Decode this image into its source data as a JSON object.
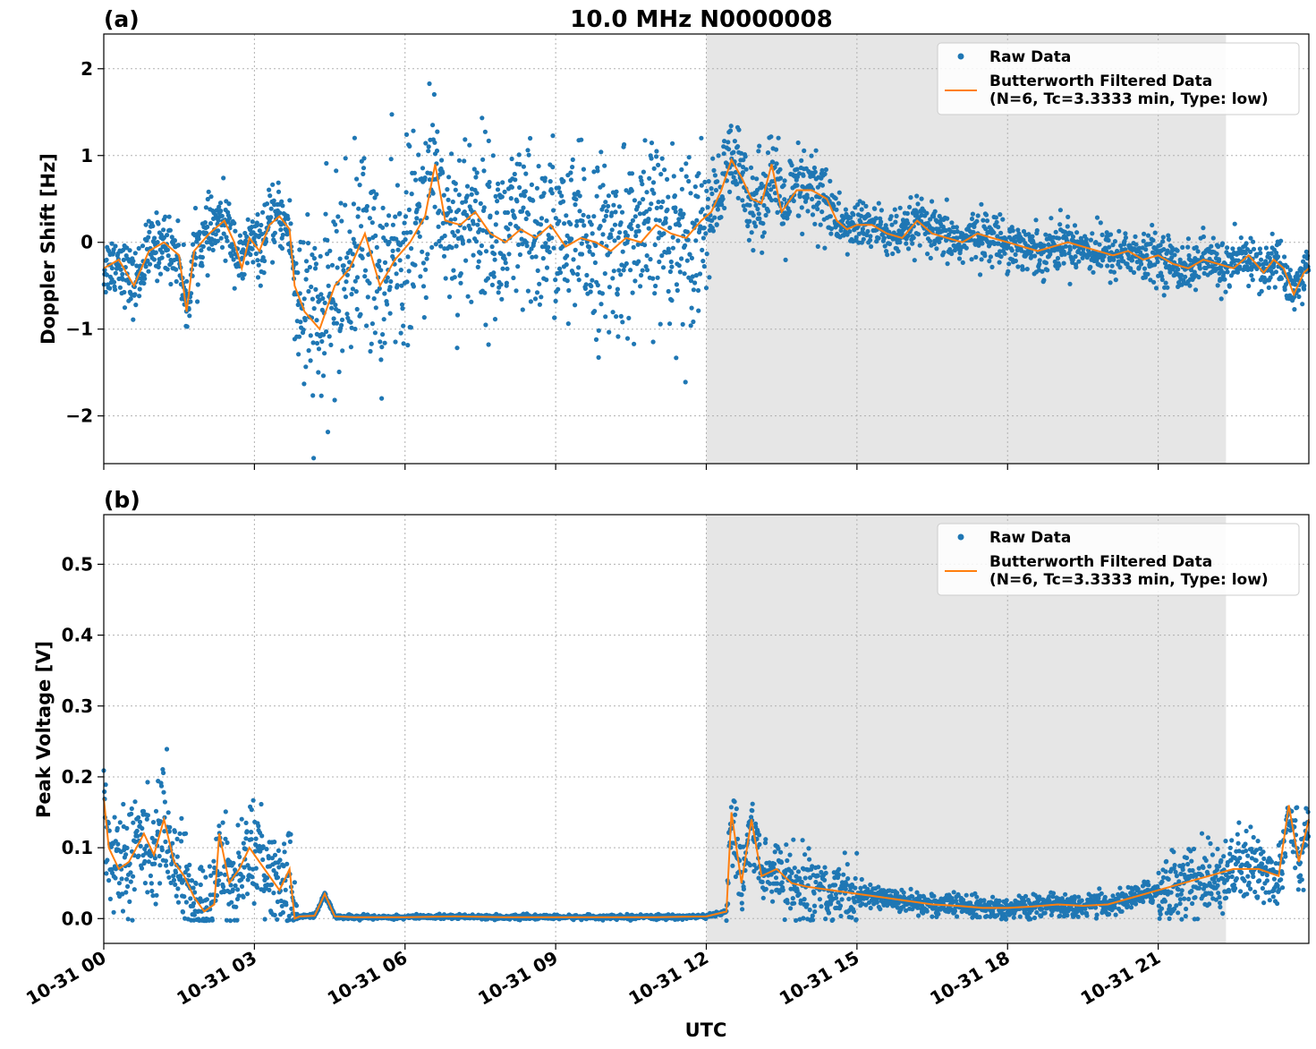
{
  "title": "10.0 MHz N0000008",
  "xlabel": "UTC",
  "x_tick_labels": [
    "10-31 00",
    "10-31 03",
    "10-31 06",
    "10-31 09",
    "10-31 12",
    "10-31 15",
    "10-31 18",
    "10-31 21"
  ],
  "colors": {
    "raw": "#1f77b4",
    "filtered": "#ff7f0e",
    "shade": "#e6e6e6"
  },
  "chart_data": [
    {
      "type": "scatter",
      "panel_label": "(a)",
      "ylabel": "Doppler Shift [Hz]",
      "xlim_hours": [
        0,
        24
      ],
      "ylim": [
        -2.55,
        2.4
      ],
      "yticks": [
        2,
        1,
        0,
        -1,
        -2
      ],
      "ytick_labels": [
        "2",
        "1",
        "0",
        "−1",
        "−2"
      ],
      "grid": true,
      "legend_position": "top-right",
      "shaded_x_range_hours": [
        12.0,
        22.35
      ],
      "legend": {
        "raw": "Raw Data",
        "filtered_line1": "Butterworth Filtered Data",
        "filtered_line2": "(N=6, Tc=3.3333 min, Type: low)"
      },
      "series": [
        {
          "name": "Butterworth Filtered Data (N=6, Tc=3.3333 min, Type: low)",
          "kind": "line",
          "x_hours": [
            0,
            0.3,
            0.6,
            0.9,
            1.2,
            1.5,
            1.65,
            1.8,
            2.1,
            2.4,
            2.6,
            2.75,
            2.9,
            3.1,
            3.3,
            3.5,
            3.7,
            3.8,
            4.0,
            4.3,
            4.6,
            4.9,
            5.2,
            5.5,
            5.8,
            6.1,
            6.4,
            6.6,
            6.8,
            7.1,
            7.4,
            7.7,
            8.0,
            8.3,
            8.6,
            8.9,
            9.2,
            9.5,
            9.8,
            10.1,
            10.4,
            10.7,
            11.0,
            11.3,
            11.6,
            11.9,
            12.1,
            12.3,
            12.5,
            12.7,
            12.9,
            13.1,
            13.3,
            13.5,
            13.8,
            14.1,
            14.4,
            14.6,
            14.8,
            15.0,
            15.3,
            15.6,
            15.9,
            16.2,
            16.5,
            16.8,
            17.1,
            17.4,
            17.7,
            18.0,
            18.3,
            18.6,
            18.9,
            19.2,
            19.5,
            19.8,
            20.1,
            20.4,
            20.7,
            21.0,
            21.3,
            21.6,
            21.9,
            22.2,
            22.5,
            22.8,
            23.1,
            23.3,
            23.5,
            23.7,
            23.9,
            24.0
          ],
          "y": [
            -0.3,
            -0.2,
            -0.5,
            -0.1,
            0.0,
            -0.15,
            -0.8,
            -0.1,
            0.1,
            0.25,
            0.0,
            -0.3,
            0.05,
            -0.1,
            0.2,
            0.3,
            0.15,
            -0.5,
            -0.8,
            -1.0,
            -0.5,
            -0.3,
            0.1,
            -0.5,
            -0.2,
            0.0,
            0.3,
            0.9,
            0.25,
            0.2,
            0.35,
            0.1,
            0.0,
            0.15,
            0.05,
            0.2,
            -0.05,
            0.05,
            0.0,
            -0.1,
            0.05,
            0.0,
            0.2,
            0.1,
            0.05,
            0.25,
            0.35,
            0.6,
            0.95,
            0.75,
            0.5,
            0.45,
            0.9,
            0.35,
            0.6,
            0.6,
            0.5,
            0.25,
            0.15,
            0.2,
            0.2,
            0.1,
            0.05,
            0.25,
            0.1,
            0.05,
            0.0,
            0.1,
            0.05,
            0.0,
            -0.05,
            -0.1,
            -0.05,
            0.0,
            -0.05,
            -0.1,
            -0.15,
            -0.1,
            -0.2,
            -0.15,
            -0.25,
            -0.3,
            -0.2,
            -0.25,
            -0.3,
            -0.15,
            -0.35,
            -0.2,
            -0.3,
            -0.6,
            -0.35,
            -0.3
          ]
        }
      ]
    },
    {
      "type": "scatter",
      "panel_label": "(b)",
      "ylabel": "Peak Voltage [V]",
      "xlim_hours": [
        0,
        24
      ],
      "ylim": [
        -0.035,
        0.57
      ],
      "yticks": [
        0.5,
        0.4,
        0.3,
        0.2,
        0.1,
        0.0
      ],
      "ytick_labels": [
        "0.5",
        "0.4",
        "0.3",
        "0.2",
        "0.1",
        "0.0"
      ],
      "grid": true,
      "legend_position": "top-right",
      "shaded_x_range_hours": [
        12.0,
        22.35
      ],
      "legend": {
        "raw": "Raw Data",
        "filtered_line1": "Butterworth Filtered Data",
        "filtered_line2": "(N=6, Tc=3.3333 min, Type: low)"
      },
      "series": [
        {
          "name": "Butterworth Filtered Data (N=6, Tc=3.3333 min, Type: low)",
          "kind": "line",
          "x_hours": [
            0,
            0.1,
            0.3,
            0.5,
            0.8,
            1.0,
            1.2,
            1.4,
            1.6,
            1.8,
            2.0,
            2.2,
            2.3,
            2.5,
            2.7,
            2.9,
            3.1,
            3.3,
            3.5,
            3.7,
            3.8,
            3.9,
            4.2,
            4.4,
            4.6,
            5.0,
            6.0,
            7.0,
            8.0,
            9.0,
            10.0,
            11.0,
            12.0,
            12.4,
            12.5,
            12.7,
            12.9,
            13.1,
            13.4,
            13.7,
            14.0,
            14.5,
            15.0,
            15.5,
            16.0,
            16.5,
            17.0,
            17.5,
            18.0,
            18.5,
            19.0,
            19.5,
            20.0,
            20.5,
            21.0,
            21.5,
            22.0,
            22.5,
            23.0,
            23.4,
            23.6,
            23.8,
            24.0
          ],
          "y": [
            0.17,
            0.1,
            0.07,
            0.08,
            0.12,
            0.09,
            0.14,
            0.08,
            0.06,
            0.03,
            0.01,
            0.02,
            0.12,
            0.05,
            0.07,
            0.1,
            0.08,
            0.06,
            0.04,
            0.07,
            0.0,
            0.003,
            0.004,
            0.035,
            0.003,
            0.002,
            0.002,
            0.003,
            0.002,
            0.002,
            0.002,
            0.002,
            0.003,
            0.01,
            0.15,
            0.05,
            0.14,
            0.06,
            0.07,
            0.05,
            0.045,
            0.04,
            0.035,
            0.03,
            0.025,
            0.02,
            0.018,
            0.015,
            0.015,
            0.017,
            0.02,
            0.018,
            0.02,
            0.03,
            0.04,
            0.05,
            0.06,
            0.07,
            0.07,
            0.06,
            0.16,
            0.08,
            0.14
          ]
        }
      ]
    }
  ]
}
